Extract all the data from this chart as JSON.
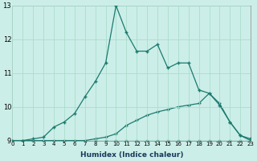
{
  "xlabel": "Humidex (Indice chaleur)",
  "xlim": [
    0,
    23
  ],
  "ylim": [
    9,
    13
  ],
  "yticks": [
    9,
    10,
    11,
    12,
    13
  ],
  "xticks": [
    0,
    1,
    2,
    3,
    4,
    5,
    6,
    7,
    8,
    9,
    10,
    11,
    12,
    13,
    14,
    15,
    16,
    17,
    18,
    19,
    20,
    21,
    22,
    23
  ],
  "background_color": "#cceee8",
  "grid_color": "#aaddcc",
  "line_color": "#1a7a6e",
  "line1_y": [
    9.0,
    9.0,
    9.0,
    9.0,
    9.0,
    9.0,
    9.0,
    9.0,
    9.0,
    9.0,
    9.0,
    9.0,
    9.0,
    9.0,
    9.0,
    9.0,
    9.0,
    9.0,
    9.0,
    9.0,
    9.0,
    9.0,
    9.0,
    9.0
  ],
  "line2_y": [
    9.0,
    9.0,
    9.0,
    9.0,
    9.0,
    9.0,
    9.0,
    9.0,
    9.05,
    9.1,
    9.2,
    9.45,
    9.6,
    9.75,
    9.85,
    9.92,
    10.0,
    10.05,
    10.1,
    10.4,
    10.1,
    9.55,
    9.15,
    9.0
  ],
  "line3_y": [
    9.0,
    9.0,
    9.05,
    9.1,
    9.4,
    9.55,
    9.8,
    10.3,
    10.75,
    11.3,
    13.0,
    12.2,
    11.65,
    11.65,
    11.85,
    11.15,
    11.3,
    11.3,
    10.5,
    10.4,
    10.05,
    9.55,
    9.15,
    9.05
  ]
}
